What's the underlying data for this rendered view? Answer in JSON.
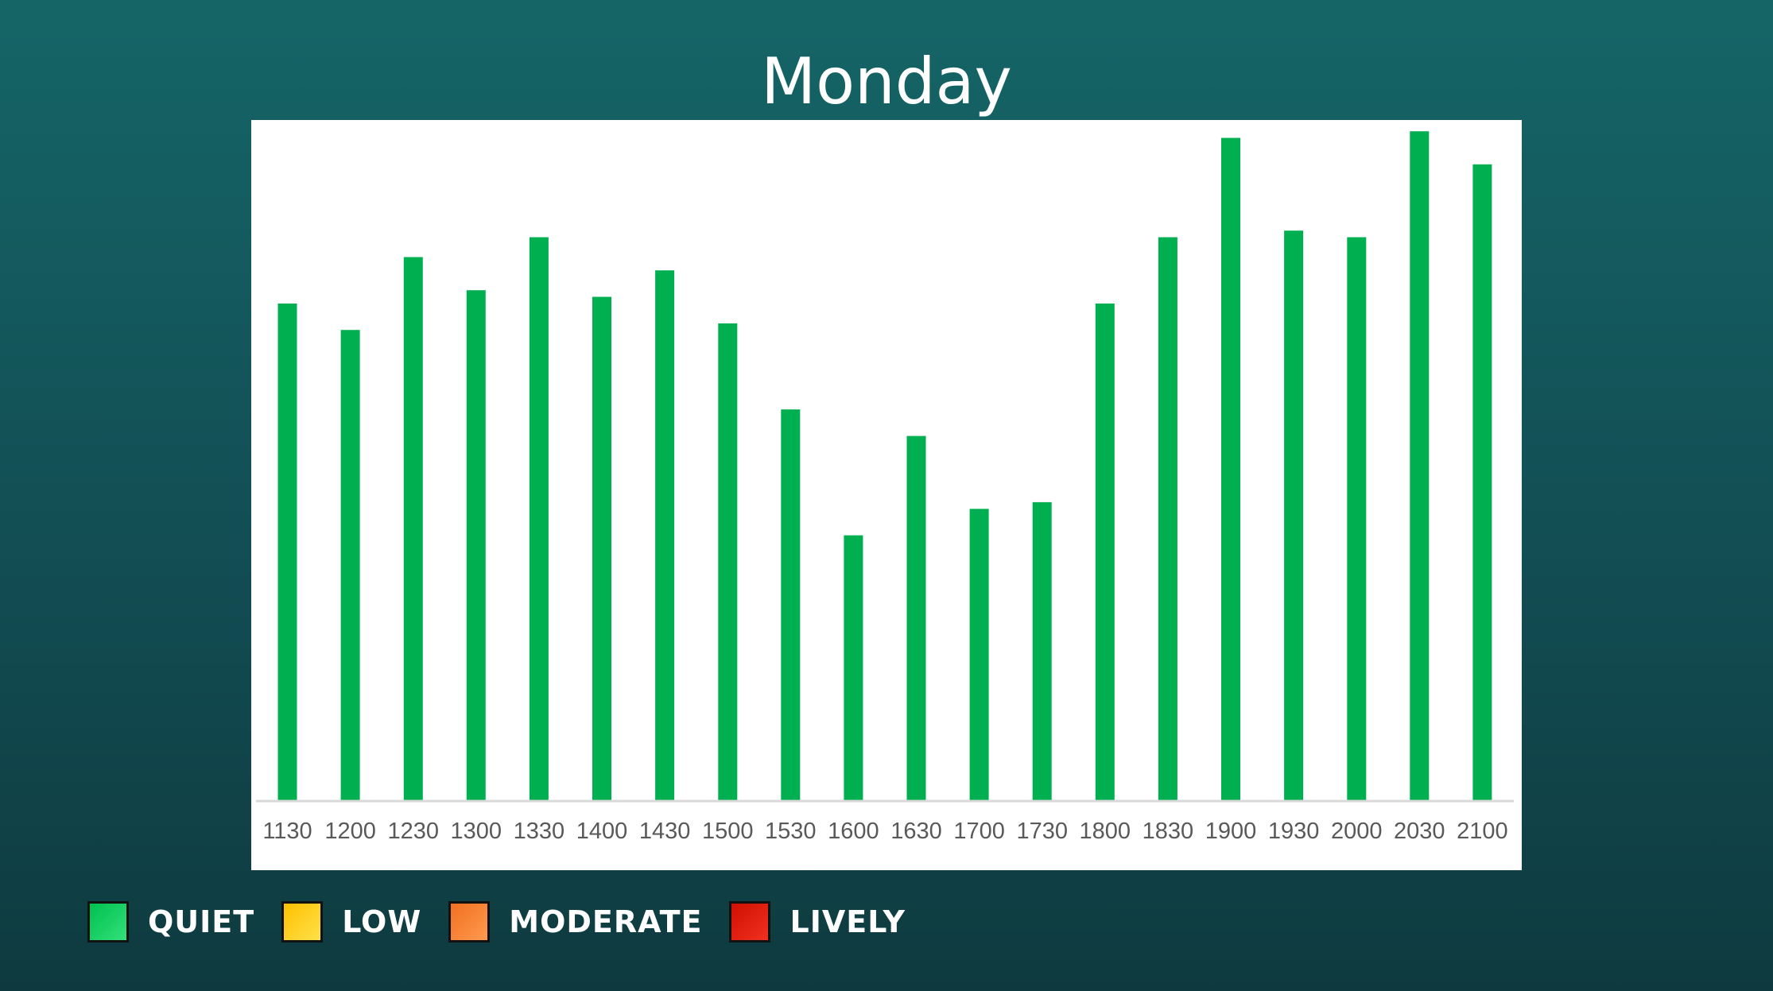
{
  "chart_data": {
    "type": "bar",
    "title": "Monday",
    "xlabel": "",
    "ylabel": "",
    "ylim": [
      0,
      100
    ],
    "grid": false,
    "categories": [
      "1130",
      "1200",
      "1230",
      "1300",
      "1330",
      "1400",
      "1430",
      "1500",
      "1530",
      "1600",
      "1630",
      "1700",
      "1730",
      "1800",
      "1830",
      "1900",
      "1930",
      "2000",
      "2030",
      "2100"
    ],
    "values": [
      75,
      71,
      82,
      77,
      85,
      76,
      80,
      72,
      59,
      40,
      55,
      44,
      45,
      75,
      85,
      100,
      86,
      85,
      101,
      96
    ],
    "bar_color": "#00b050"
  },
  "legend": {
    "items": [
      {
        "label": "QUIET",
        "color": "#00c050",
        "color_light": "#33e07a"
      },
      {
        "label": "LOW",
        "color": "#ffc000",
        "color_light": "#ffe14a"
      },
      {
        "label": "MODERATE",
        "color": "#f07020",
        "color_light": "#ff9a50"
      },
      {
        "label": "LIVELY",
        "color": "#d01000",
        "color_light": "#f03020"
      }
    ]
  }
}
